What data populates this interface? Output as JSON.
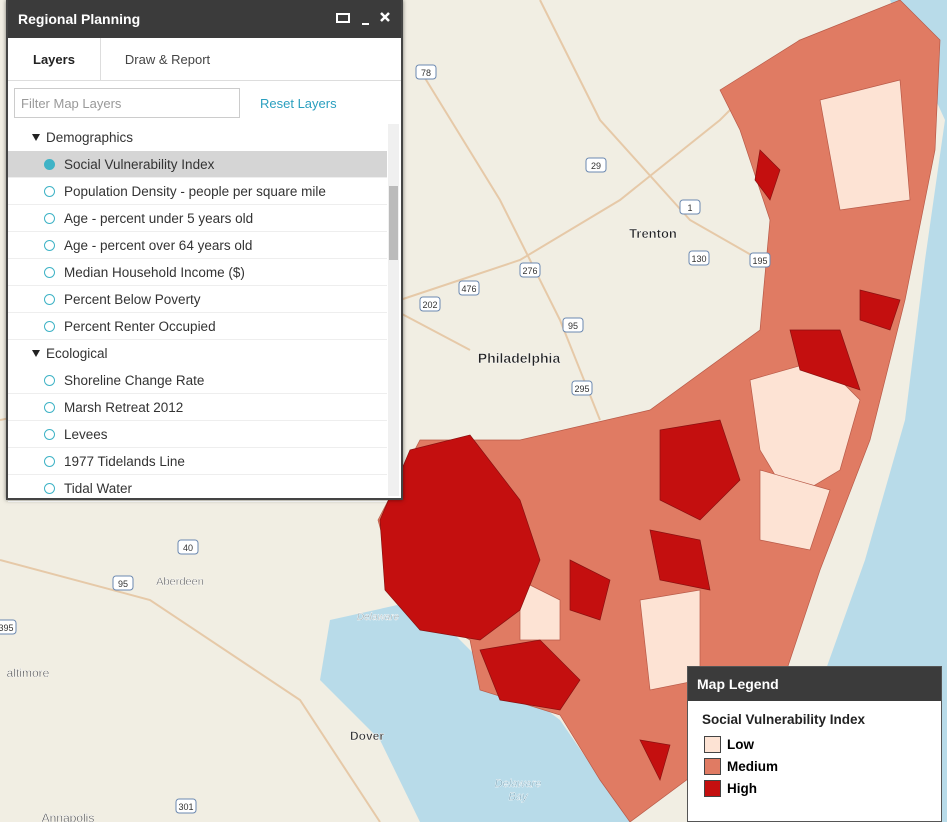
{
  "panel": {
    "title": "Regional Planning",
    "tabs": [
      "Layers",
      "Draw & Report"
    ],
    "filter_placeholder": "Filter Map Layers",
    "reset": "Reset Layers",
    "groups": [
      {
        "name": "Demographics",
        "layers": [
          "Social Vulnerability Index",
          "Population Density - people per square mile",
          "Age - percent under 5 years old",
          "Age - percent over 64 years old",
          "Median Household Income ($)",
          "Percent Below Poverty",
          "Percent Renter Occupied"
        ]
      },
      {
        "name": "Ecological",
        "layers": [
          "Shoreline Change Rate",
          "Marsh Retreat 2012",
          "Levees",
          "1977 Tidelands Line",
          "Tidal Water"
        ]
      }
    ]
  },
  "legend": {
    "title": "Map Legend",
    "layer": "Social Vulnerability Index",
    "items": [
      {
        "label": "Low",
        "color": "#fde3d4"
      },
      {
        "label": "Medium",
        "color": "#e07b63"
      },
      {
        "label": "High",
        "color": "#c40f0f"
      }
    ]
  },
  "map": {
    "places": [
      "Trenton",
      "Philadelphia",
      "Aberdeen",
      "altimore",
      "Dover",
      "Annapolis",
      "Delaware",
      "Bay",
      "Delaware"
    ],
    "routes": [
      "78",
      "29",
      "1",
      "276",
      "476",
      "95",
      "295",
      "130",
      "195",
      "202",
      "40",
      "95",
      "301",
      "395"
    ]
  }
}
